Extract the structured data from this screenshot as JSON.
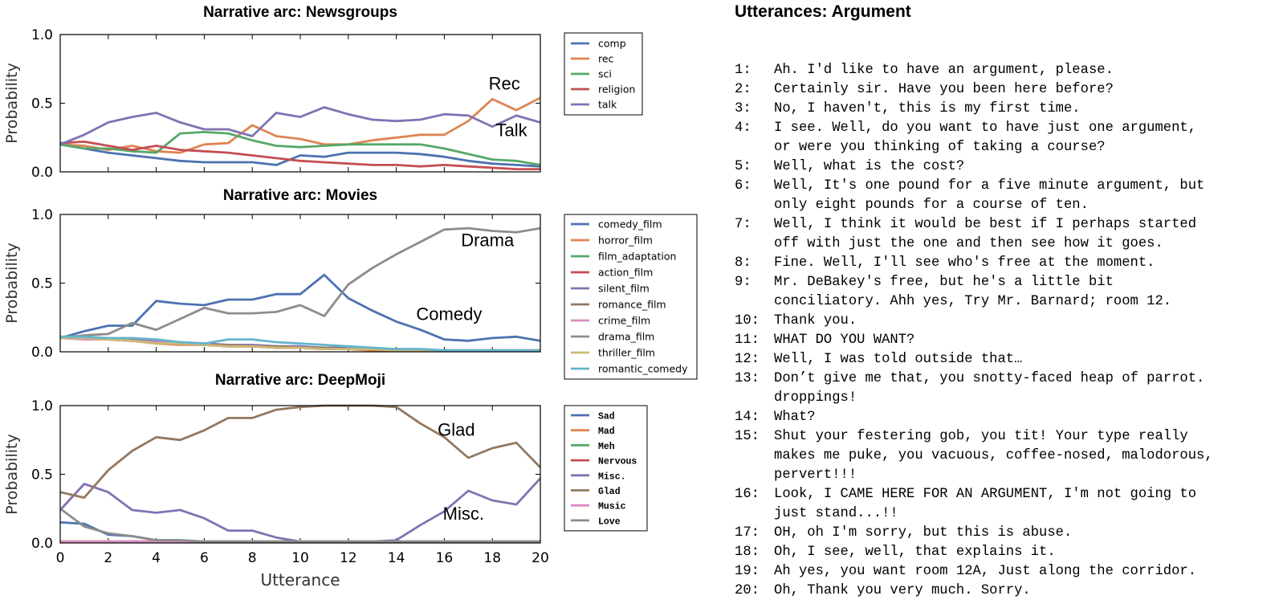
{
  "charts": [
    {
      "type": "line",
      "title": "Narrative arc: Newsgroups",
      "ylabel": "Probability",
      "xlabel": "",
      "xlim": [
        0,
        20
      ],
      "ylim": [
        0,
        1.0
      ],
      "yticks": [
        "0.0",
        "0.5",
        "1.0"
      ],
      "show_xticklabels": false,
      "legend_position": "right-outside",
      "legend_font": "sans",
      "series": [
        {
          "name": "comp",
          "color": "#4c72b0",
          "values": [
            0.2,
            0.17,
            0.14,
            0.12,
            0.1,
            0.08,
            0.07,
            0.07,
            0.07,
            0.05,
            0.12,
            0.11,
            0.14,
            0.14,
            0.14,
            0.13,
            0.11,
            0.08,
            0.06,
            0.05,
            0.04
          ]
        },
        {
          "name": "rec",
          "color": "#dd8452",
          "values": [
            0.2,
            0.19,
            0.16,
            0.19,
            0.15,
            0.14,
            0.2,
            0.21,
            0.34,
            0.26,
            0.24,
            0.2,
            0.2,
            0.23,
            0.25,
            0.27,
            0.27,
            0.37,
            0.53,
            0.45,
            0.54
          ]
        },
        {
          "name": "sci",
          "color": "#55a868",
          "values": [
            0.2,
            0.17,
            0.17,
            0.15,
            0.14,
            0.28,
            0.29,
            0.28,
            0.23,
            0.19,
            0.18,
            0.19,
            0.2,
            0.2,
            0.2,
            0.2,
            0.17,
            0.13,
            0.09,
            0.08,
            0.05
          ]
        },
        {
          "name": "religion",
          "color": "#c44e52",
          "values": [
            0.21,
            0.22,
            0.19,
            0.16,
            0.19,
            0.16,
            0.15,
            0.14,
            0.12,
            0.1,
            0.08,
            0.07,
            0.06,
            0.05,
            0.05,
            0.04,
            0.05,
            0.04,
            0.03,
            0.02,
            0.02
          ]
        },
        {
          "name": "talk",
          "color": "#8172b2",
          "values": [
            0.2,
            0.27,
            0.36,
            0.4,
            0.43,
            0.36,
            0.31,
            0.31,
            0.26,
            0.43,
            0.4,
            0.47,
            0.42,
            0.38,
            0.37,
            0.38,
            0.42,
            0.41,
            0.33,
            0.41,
            0.36
          ]
        }
      ],
      "annotations": [
        {
          "text": "Rec",
          "x": 18.5,
          "y": 0.6
        },
        {
          "text": "Talk",
          "x": 18.8,
          "y": 0.26
        }
      ]
    },
    {
      "type": "line",
      "title": "Narrative arc: Movies",
      "ylabel": "Probability",
      "xlabel": "",
      "xlim": [
        0,
        20
      ],
      "ylim": [
        0,
        1.0
      ],
      "yticks": [
        "0.0",
        "0.5",
        "1.0"
      ],
      "show_xticklabels": false,
      "legend_position": "right-outside",
      "legend_font": "sans",
      "series": [
        {
          "name": "comedy_film",
          "color": "#4c72b0",
          "values": [
            0.1,
            0.15,
            0.19,
            0.19,
            0.37,
            0.35,
            0.34,
            0.38,
            0.38,
            0.42,
            0.42,
            0.56,
            0.39,
            0.3,
            0.22,
            0.16,
            0.09,
            0.08,
            0.1,
            0.11,
            0.08
          ]
        },
        {
          "name": "horror_film",
          "color": "#dd8452",
          "values": [
            0.1,
            0.1,
            0.09,
            0.08,
            0.06,
            0.05,
            0.05,
            0.04,
            0.04,
            0.03,
            0.03,
            0.02,
            0.02,
            0.01,
            0.01,
            0.01,
            0.01,
            0.01,
            0.01,
            0.01,
            0.01
          ]
        },
        {
          "name": "film_adaptation",
          "color": "#55a868",
          "values": [
            0.1,
            0.1,
            0.09,
            0.08,
            0.07,
            0.06,
            0.05,
            0.05,
            0.04,
            0.04,
            0.03,
            0.03,
            0.02,
            0.02,
            0.02,
            0.01,
            0.01,
            0.01,
            0.01,
            0.01,
            0.01
          ]
        },
        {
          "name": "action_film",
          "color": "#c44e52",
          "values": [
            0.1,
            0.1,
            0.09,
            0.08,
            0.07,
            0.06,
            0.05,
            0.04,
            0.04,
            0.03,
            0.03,
            0.02,
            0.02,
            0.02,
            0.01,
            0.01,
            0.01,
            0.01,
            0.01,
            0.01,
            0.01
          ]
        },
        {
          "name": "silent_film",
          "color": "#8172b2",
          "values": [
            0.1,
            0.1,
            0.1,
            0.09,
            0.08,
            0.07,
            0.06,
            0.05,
            0.05,
            0.04,
            0.04,
            0.03,
            0.03,
            0.02,
            0.02,
            0.02,
            0.01,
            0.01,
            0.01,
            0.01,
            0.01
          ]
        },
        {
          "name": "romance_film",
          "color": "#937860",
          "values": [
            0.1,
            0.1,
            0.09,
            0.08,
            0.07,
            0.06,
            0.05,
            0.05,
            0.04,
            0.04,
            0.03,
            0.03,
            0.02,
            0.02,
            0.02,
            0.01,
            0.01,
            0.01,
            0.01,
            0.01,
            0.01
          ]
        },
        {
          "name": "crime_film",
          "color": "#da8bc3",
          "values": [
            0.1,
            0.09,
            0.09,
            0.08,
            0.07,
            0.06,
            0.05,
            0.04,
            0.04,
            0.03,
            0.03,
            0.02,
            0.02,
            0.02,
            0.01,
            0.01,
            0.01,
            0.01,
            0.01,
            0.01,
            0.01
          ]
        },
        {
          "name": "drama_film",
          "color": "#8c8c8c",
          "values": [
            0.1,
            0.12,
            0.13,
            0.21,
            0.16,
            0.24,
            0.32,
            0.28,
            0.28,
            0.29,
            0.34,
            0.26,
            0.49,
            0.61,
            0.71,
            0.8,
            0.89,
            0.9,
            0.88,
            0.87,
            0.9
          ]
        },
        {
          "name": "thriller_film",
          "color": "#ccb974",
          "values": [
            0.1,
            0.1,
            0.09,
            0.08,
            0.06,
            0.06,
            0.05,
            0.04,
            0.04,
            0.03,
            0.03,
            0.02,
            0.02,
            0.02,
            0.01,
            0.01,
            0.01,
            0.01,
            0.01,
            0.01,
            0.01
          ]
        },
        {
          "name": "romantic_comedy",
          "color": "#64b5cd",
          "values": [
            0.11,
            0.11,
            0.1,
            0.1,
            0.09,
            0.07,
            0.06,
            0.09,
            0.09,
            0.07,
            0.06,
            0.05,
            0.04,
            0.03,
            0.02,
            0.02,
            0.01,
            0.01,
            0.01,
            0.01,
            0.01
          ]
        }
      ],
      "annotations": [
        {
          "text": "Drama",
          "x": 17.8,
          "y": 0.77
        },
        {
          "text": "Comedy",
          "x": 16.2,
          "y": 0.23
        }
      ]
    },
    {
      "type": "line",
      "title": "Narrative arc: DeepMoji",
      "ylabel": "Probability",
      "xlabel": "Utterance",
      "xlim": [
        0,
        20
      ],
      "ylim": [
        0,
        1.0
      ],
      "yticks": [
        "0.0",
        "0.5",
        "1.0"
      ],
      "xticks": [
        "0",
        "2",
        "4",
        "6",
        "8",
        "10",
        "12",
        "14",
        "16",
        "18",
        "20"
      ],
      "show_xticklabels": true,
      "legend_position": "right-outside",
      "legend_font": "mono",
      "series": [
        {
          "name": "Sad",
          "color": "#4c72b0",
          "values": [
            0.15,
            0.14,
            0.06,
            0.05,
            0.02,
            0.02,
            0.01,
            0.01,
            0.01,
            0.01,
            0.01,
            0.01,
            0.01,
            0.01,
            0.01,
            0.01,
            0.01,
            0.01,
            0.01,
            0.01,
            0.01
          ]
        },
        {
          "name": "Mad",
          "color": "#dd8452",
          "values": [
            0.01,
            0.01,
            0.01,
            0.01,
            0.01,
            0.01,
            0.01,
            0.01,
            0.01,
            0.01,
            0.01,
            0.01,
            0.01,
            0.01,
            0.01,
            0.01,
            0.01,
            0.01,
            0.01,
            0.01,
            0.01
          ]
        },
        {
          "name": "Meh",
          "color": "#55a868",
          "values": [
            0.01,
            0.01,
            0.01,
            0.01,
            0.01,
            0.01,
            0.01,
            0.01,
            0.01,
            0.01,
            0.01,
            0.01,
            0.01,
            0.01,
            0.01,
            0.01,
            0.01,
            0.01,
            0.01,
            0.01,
            0.01
          ]
        },
        {
          "name": "Nervous",
          "color": "#c44e52",
          "values": [
            0.01,
            0.01,
            0.01,
            0.01,
            0.01,
            0.01,
            0.01,
            0.01,
            0.01,
            0.01,
            0.01,
            0.01,
            0.01,
            0.01,
            0.01,
            0.01,
            0.01,
            0.01,
            0.01,
            0.01,
            0.01
          ]
        },
        {
          "name": "Misc.",
          "color": "#8172b2",
          "values": [
            0.24,
            0.43,
            0.37,
            0.24,
            0.22,
            0.24,
            0.18,
            0.09,
            0.09,
            0.04,
            0.01,
            0.01,
            0.01,
            0.01,
            0.02,
            0.13,
            0.23,
            0.38,
            0.31,
            0.28,
            0.47
          ]
        },
        {
          "name": "Glad",
          "color": "#937860",
          "values": [
            0.37,
            0.33,
            0.53,
            0.67,
            0.77,
            0.75,
            0.82,
            0.91,
            0.91,
            0.97,
            0.99,
            1.0,
            1.0,
            1.0,
            0.99,
            0.87,
            0.77,
            0.62,
            0.69,
            0.73,
            0.55
          ]
        },
        {
          "name": "Music",
          "color": "#da8bc3",
          "values": [
            0.01,
            0.01,
            0.01,
            0.01,
            0.01,
            0.01,
            0.01,
            0.01,
            0.01,
            0.01,
            0.01,
            0.01,
            0.01,
            0.01,
            0.01,
            0.01,
            0.01,
            0.01,
            0.01,
            0.01,
            0.01
          ]
        },
        {
          "name": "Love",
          "color": "#8c8c8c",
          "values": [
            0.25,
            0.12,
            0.07,
            0.05,
            0.02,
            0.02,
            0.01,
            0.01,
            0.01,
            0.01,
            0.01,
            0.01,
            0.01,
            0.01,
            0.01,
            0.01,
            0.01,
            0.01,
            0.01,
            0.01,
            0.01
          ]
        }
      ],
      "annotations": [
        {
          "text": "Glad",
          "x": 16.5,
          "y": 0.78
        },
        {
          "text": "Misc.",
          "x": 16.8,
          "y": 0.17
        }
      ]
    }
  ],
  "utterances": {
    "title": "Utterances: Argument",
    "items": [
      {
        "num": "1:",
        "lines": [
          "Ah. I'd like to have an argument, please."
        ]
      },
      {
        "num": "2:",
        "lines": [
          "Certainly sir. Have you been here before?"
        ]
      },
      {
        "num": "3:",
        "lines": [
          "No, I haven't, this is my first time."
        ]
      },
      {
        "num": "4:",
        "lines": [
          "I see. Well, do you want to have just one argument,",
          "or were you thinking of taking a course?"
        ]
      },
      {
        "num": "5:",
        "lines": [
          "Well, what is the cost?"
        ]
      },
      {
        "num": "6:",
        "lines": [
          "Well, It's one pound for a five minute argument, but",
          "only eight pounds for a course of ten."
        ]
      },
      {
        "num": "7:",
        "lines": [
          "Well, I think it would be best if I perhaps started",
          "off with just the one and then see how it goes."
        ]
      },
      {
        "num": "8:",
        "lines": [
          "Fine. Well, I'll see who's free at the moment."
        ]
      },
      {
        "num": "9:",
        "lines": [
          "Mr. DeBakey's free, but he's a little bit",
          "conciliatory. Ahh yes, Try Mr. Barnard; room 12."
        ]
      },
      {
        "num": "10:",
        "lines": [
          "Thank you."
        ]
      },
      {
        "num": "11:",
        "lines": [
          "WHAT DO YOU WANT?"
        ]
      },
      {
        "num": "12:",
        "lines": [
          "Well, I was told outside that…"
        ]
      },
      {
        "num": "13:",
        "lines": [
          "Don’t give me that, you snotty-faced heap of parrot.",
          "droppings!"
        ]
      },
      {
        "num": "14:",
        "lines": [
          "What?"
        ]
      },
      {
        "num": "15:",
        "lines": [
          "Shut your festering gob, you tit! Your type really",
          "makes me puke, you vacuous, coffee-nosed, malodorous,",
          "pervert!!!"
        ]
      },
      {
        "num": "16:",
        "lines": [
          "Look, I CAME HERE FOR AN ARGUMENT, I'm not going to",
          "just stand...!!"
        ]
      },
      {
        "num": "17:",
        "lines": [
          "OH, oh I'm sorry, but this is abuse."
        ]
      },
      {
        "num": "18:",
        "lines": [
          "Oh, I see, well, that explains it."
        ]
      },
      {
        "num": "19:",
        "lines": [
          "Ah yes, you want room 12A, Just along the corridor."
        ]
      },
      {
        "num": "20:",
        "lines": [
          "Oh, Thank you very much. Sorry."
        ]
      }
    ]
  }
}
